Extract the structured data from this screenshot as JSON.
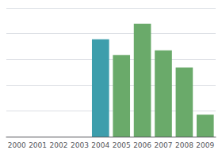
{
  "chart_data": {
    "type": "bar",
    "categories": [
      "2000",
      "2001",
      "2002",
      "2003",
      "2004",
      "2005",
      "2006",
      "2007",
      "2008",
      "2009"
    ],
    "values": [
      0,
      0,
      0,
      0,
      62,
      52,
      72,
      55,
      44,
      14
    ],
    "colors": [
      "#5ba898",
      "#5ba898",
      "#5ba898",
      "#5ba898",
      "#3d9eac",
      "#6aaa6a",
      "#6aaa6a",
      "#6aaa6a",
      "#6aaa6a",
      "#6aaa6a"
    ],
    "ylim": [
      0,
      82
    ],
    "yticks": [
      0,
      16.4,
      32.8,
      49.2,
      65.6,
      82
    ],
    "grid": true,
    "tick_labels": "x"
  }
}
